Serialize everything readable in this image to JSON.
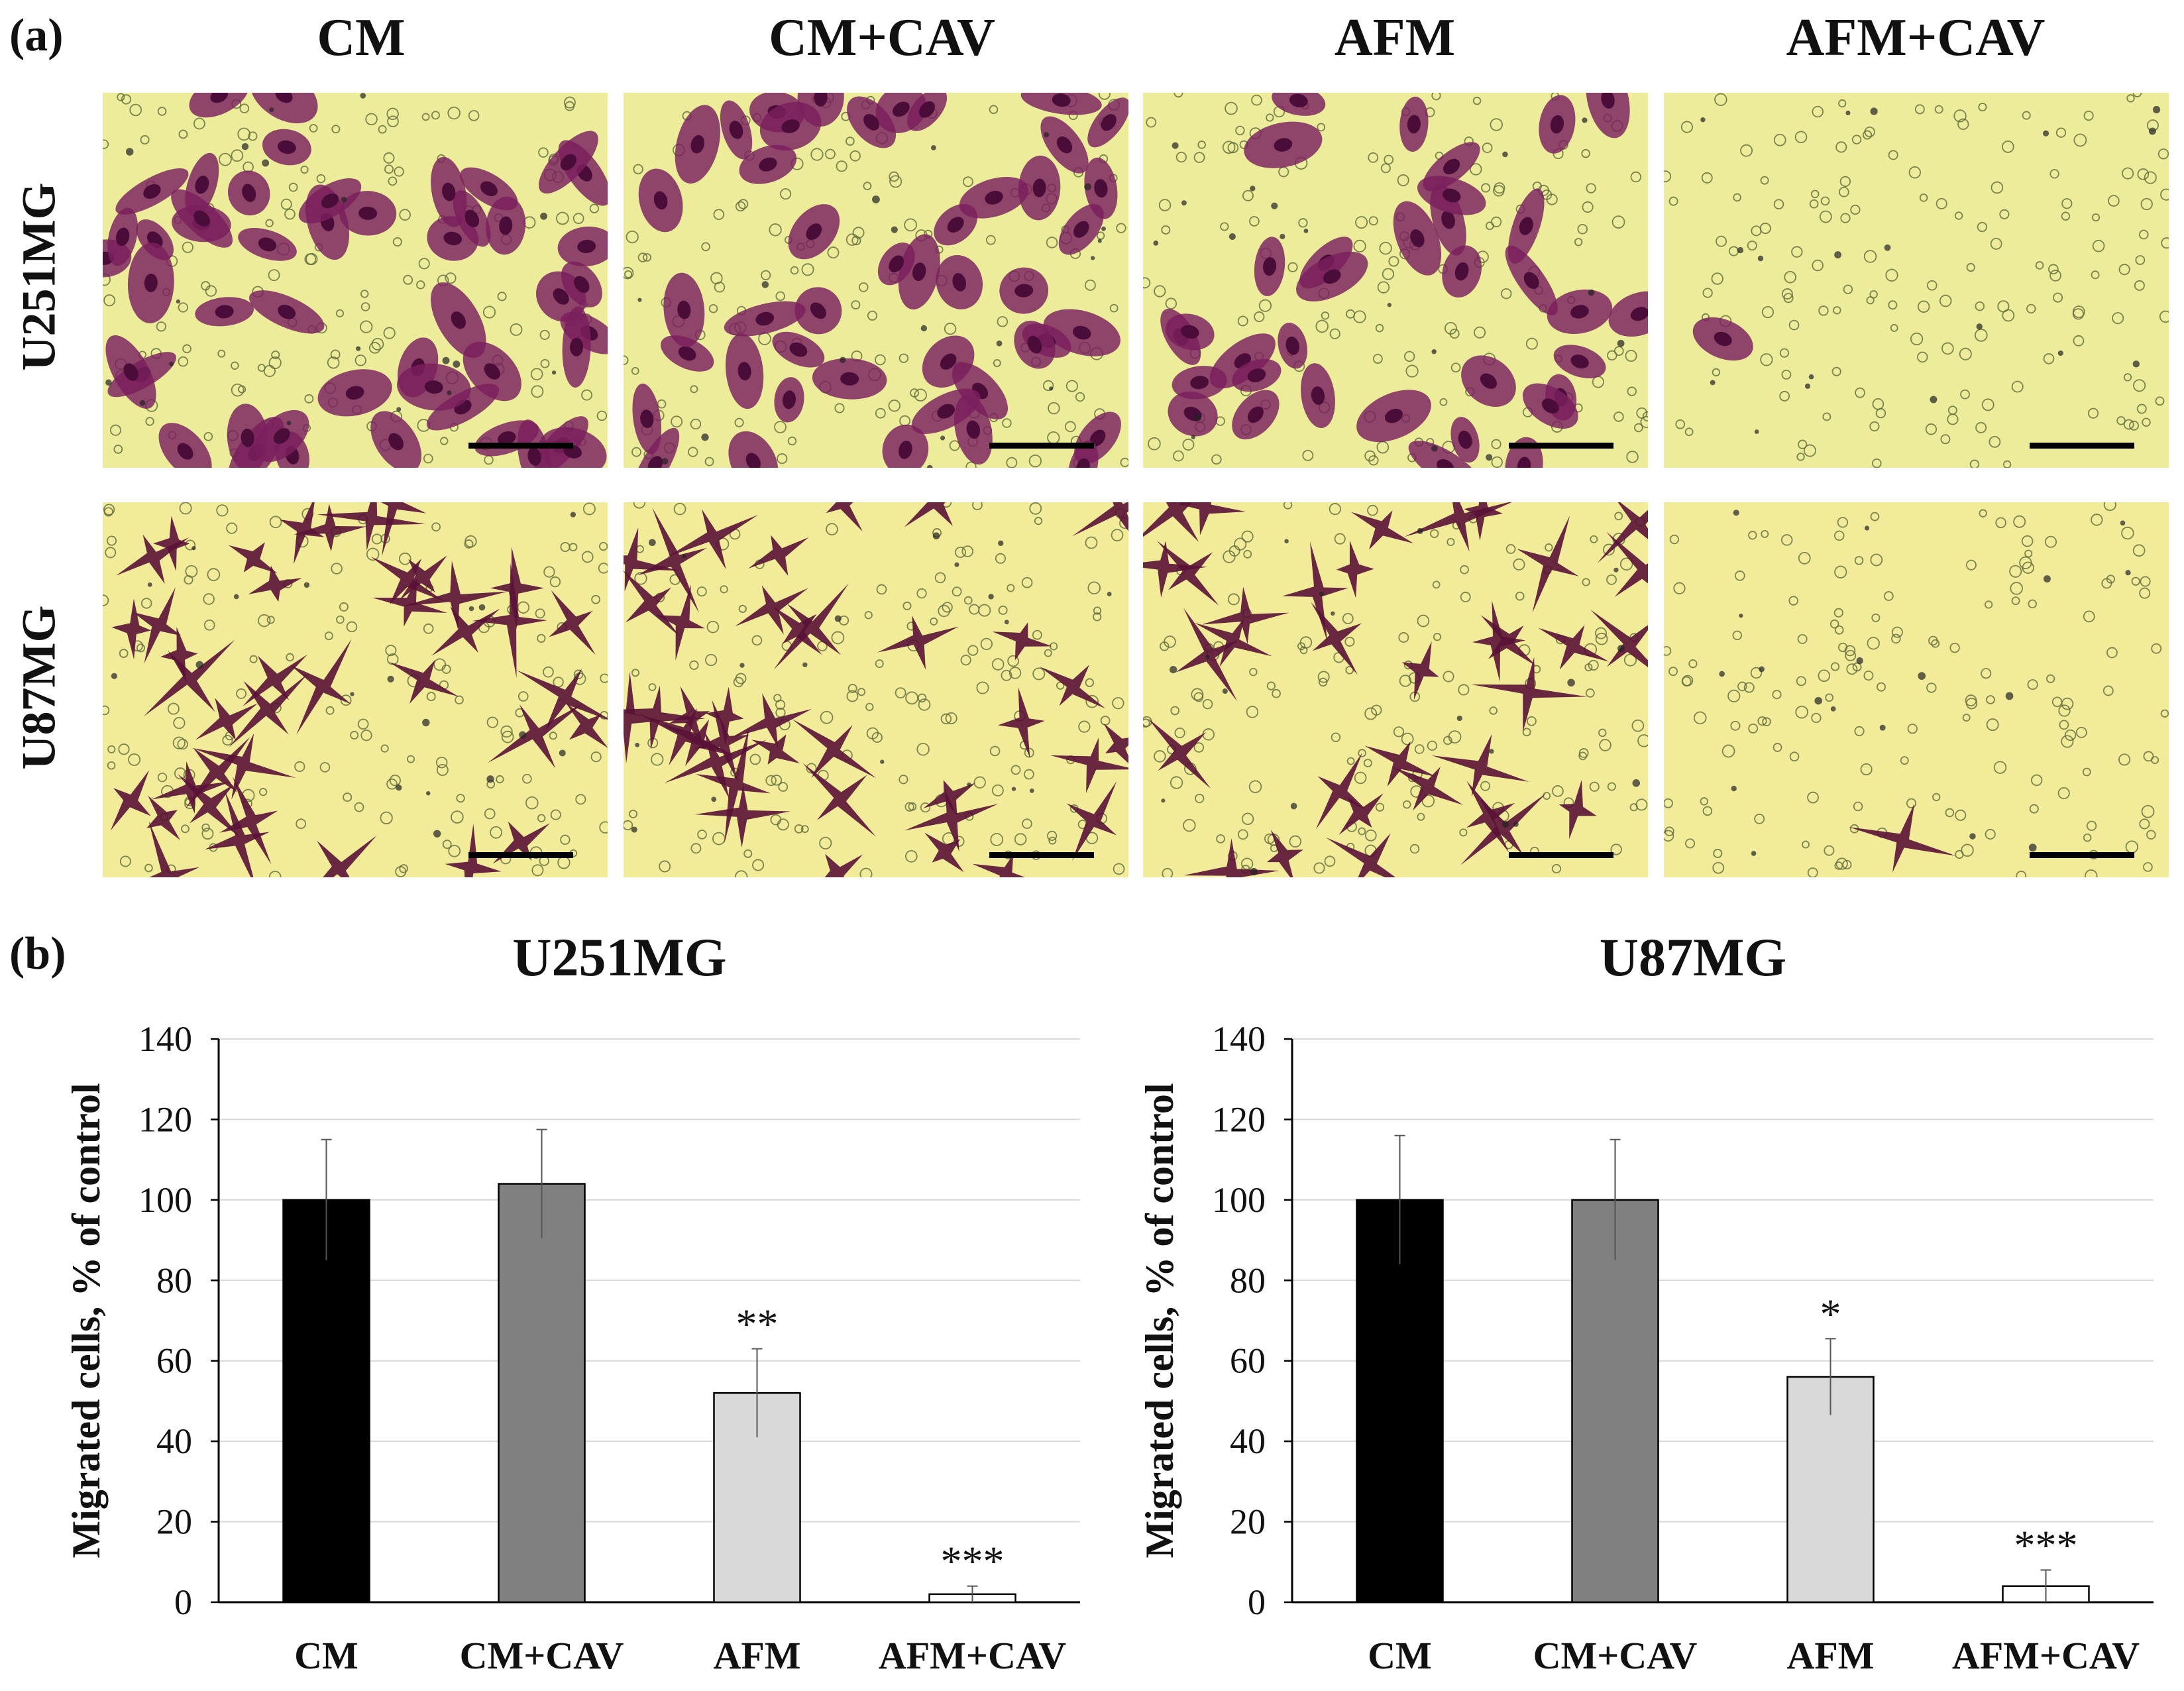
{
  "figure": {
    "panel_a_label": "(a)",
    "panel_b_label": "(b)",
    "columns": [
      "CM",
      "CM+CAV",
      "AFM",
      "AFM+CAV"
    ],
    "rows": [
      "U251MG",
      "U87MG"
    ],
    "micrographs": {
      "stain_color": "#7a1e5e",
      "background_color_u251": "#ecec9a",
      "background_color_u87": "#f2ec9a",
      "cell_density": [
        [
          48,
          44,
          34,
          1
        ],
        [
          40,
          38,
          34,
          1
        ]
      ]
    }
  },
  "chart_data": [
    {
      "type": "bar",
      "title": "U251MG",
      "ylabel": "Migrated cells, % of control",
      "categories": [
        "CM",
        "CM+CAV",
        "AFM",
        "AFM+CAV"
      ],
      "values": [
        100,
        104,
        52,
        2
      ],
      "errors": [
        15,
        13.5,
        11,
        2
      ],
      "significance": [
        "",
        "",
        "**",
        "***"
      ],
      "colors": [
        "#000000",
        "#808080",
        "#d9d9d9",
        "#ffffff"
      ],
      "ylim": [
        0,
        140
      ],
      "yticks": [
        0,
        20,
        40,
        60,
        80,
        100,
        120,
        140
      ],
      "grid": true
    },
    {
      "type": "bar",
      "title": "U87MG",
      "ylabel": "Migrated cells, % of control",
      "categories": [
        "CM",
        "CM+CAV",
        "AFM",
        "AFM+CAV"
      ],
      "values": [
        100,
        100,
        56,
        4
      ],
      "errors": [
        16,
        15,
        9.5,
        4
      ],
      "significance": [
        "",
        "",
        "*",
        "***"
      ],
      "colors": [
        "#000000",
        "#808080",
        "#d9d9d9",
        "#ffffff"
      ],
      "ylim": [
        0,
        140
      ],
      "yticks": [
        0,
        20,
        40,
        60,
        80,
        100,
        120,
        140
      ],
      "grid": true
    }
  ]
}
